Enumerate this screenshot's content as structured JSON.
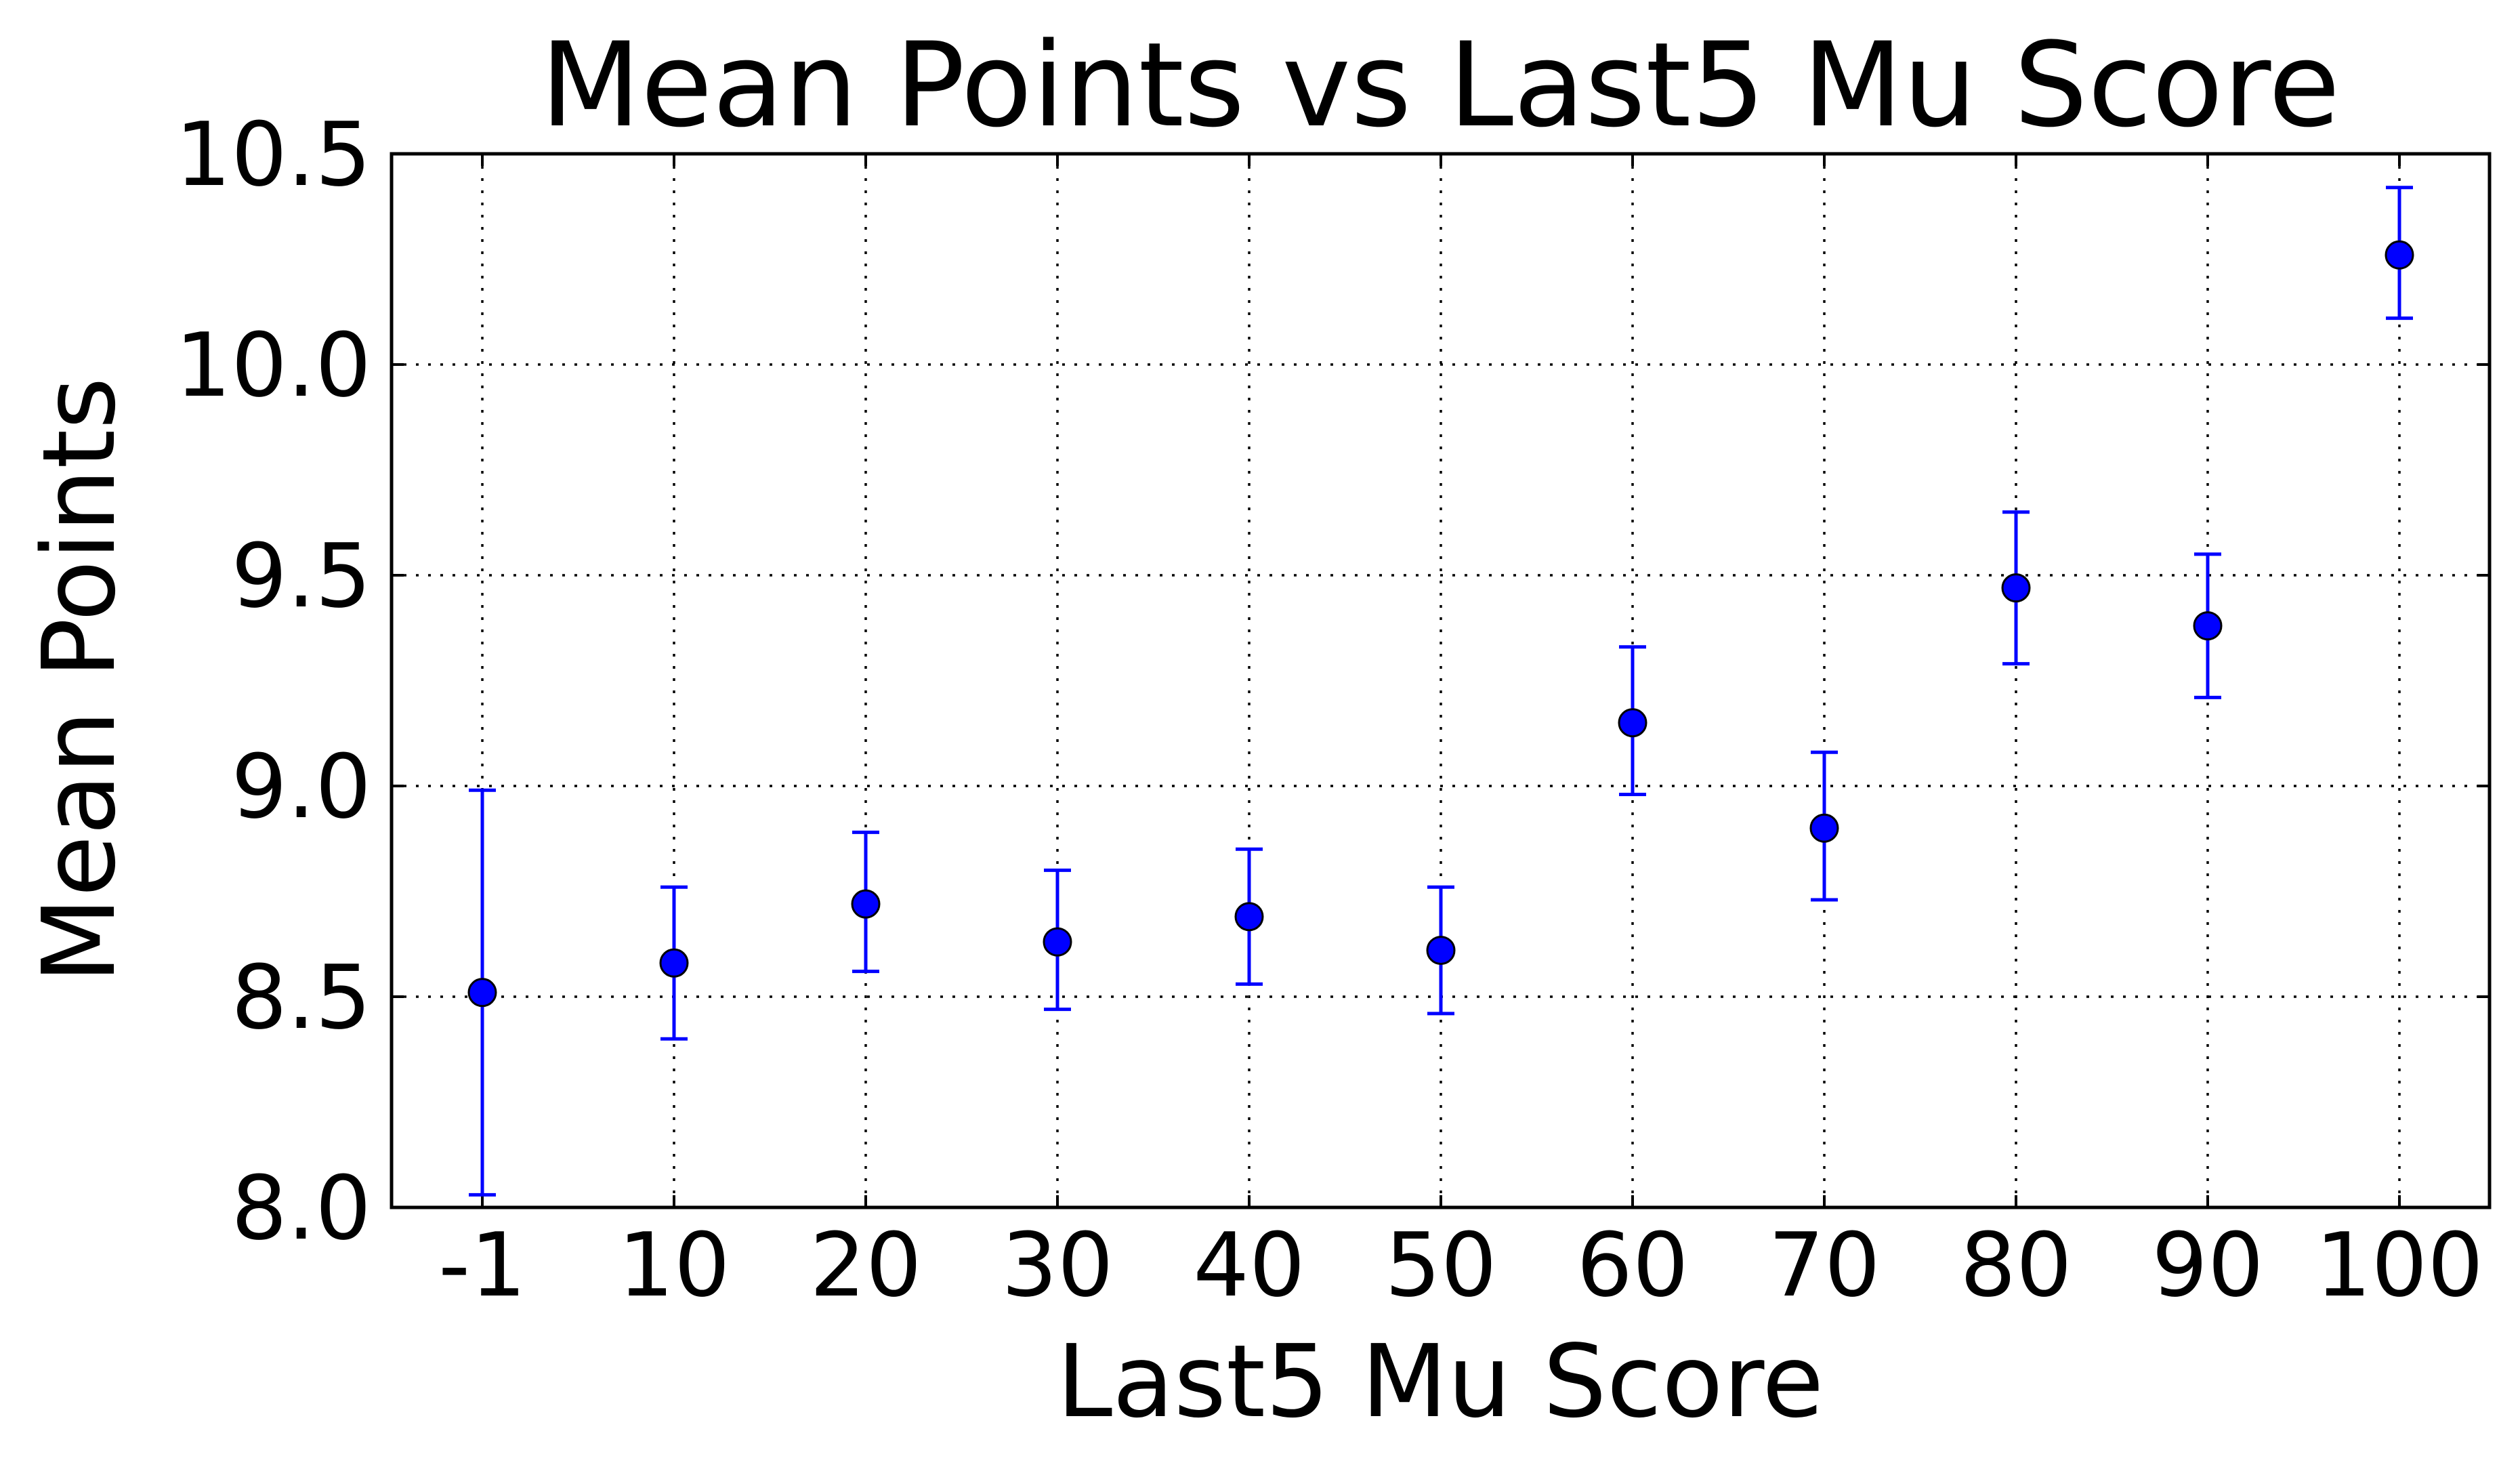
{
  "chart_data": {
    "type": "scatter",
    "title": "Mean Points vs Last5 Mu Score",
    "xlabel": "Last5 Mu Score",
    "ylabel": "Mean Points",
    "categories": [
      "-1",
      "10",
      "20",
      "30",
      "40",
      "50",
      "60",
      "70",
      "80",
      "90",
      "100"
    ],
    "values": [
      8.51,
      8.58,
      8.72,
      8.63,
      8.69,
      8.61,
      9.15,
      8.9,
      9.47,
      9.38,
      10.26
    ],
    "error_lower": [
      8.03,
      8.4,
      8.56,
      8.47,
      8.53,
      8.46,
      8.98,
      8.73,
      9.29,
      9.21,
      10.11
    ],
    "error_upper": [
      8.99,
      8.76,
      8.89,
      8.8,
      8.85,
      8.76,
      9.33,
      9.08,
      9.65,
      9.55,
      10.42
    ],
    "ylim": [
      8.0,
      10.5
    ],
    "yticks": [
      "8.0",
      "8.5",
      "9.0",
      "9.5",
      "10.0",
      "10.5"
    ],
    "grid": true,
    "colors": {
      "marker": "#0000ff",
      "errorbar": "#0000ff"
    }
  }
}
